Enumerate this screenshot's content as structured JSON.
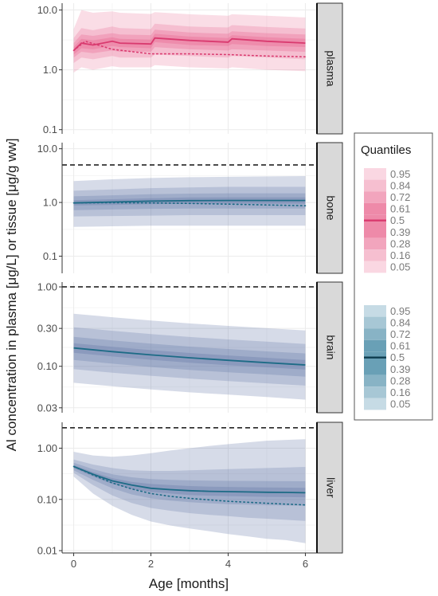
{
  "figure": {
    "ylabel": "Al concentration in plasma [μg/L] or tissue [μg/g ww]",
    "xlabel": "Age [months]",
    "legend_title": "Quantiles"
  },
  "colors": {
    "pink_base": "#e8658e",
    "pink_median": "#d93a6f",
    "blue_base": "#6b7fab",
    "blue_median": "#1d6b86",
    "grid": "#ebebeb",
    "strip": "#d9d9d9",
    "reference_line": "#111111"
  },
  "chart_data": {
    "type": "area",
    "x_ticks": [
      0,
      2,
      4,
      6
    ],
    "x_tick_labels": [
      "0",
      "2",
      "4",
      "6"
    ],
    "xlim": [
      -0.3,
      6.3
    ],
    "scale": "log10",
    "quantile_levels": [
      "0.95",
      "0.84",
      "0.72",
      "0.61",
      "0.5",
      "0.39",
      "0.28",
      "0.16",
      "0.05"
    ],
    "band_pairs": [
      [
        "0.05",
        "0.95"
      ],
      [
        "0.16",
        "0.84"
      ],
      [
        "0.28",
        "0.72"
      ],
      [
        "0.39",
        "0.61"
      ]
    ],
    "panels": [
      {
        "label": "plasma",
        "palette": "pink",
        "ylim": [
          0.085,
          13
        ],
        "y_ticks": [
          0.1,
          1.0,
          10.0
        ],
        "y_tick_labels": [
          "0.1",
          "1.0",
          "10.0"
        ],
        "reference_line": null,
        "x": [
          0,
          0.2,
          0.5,
          1.0,
          1.2,
          2.0,
          2.1,
          3.0,
          4.0,
          4.1,
          5.0,
          6.0
        ],
        "q05": [
          0.9,
          1.1,
          1.0,
          1.15,
          1.1,
          1.1,
          1.2,
          1.1,
          1.05,
          1.1,
          1.0,
          0.95
        ],
        "q16": [
          1.3,
          1.6,
          1.5,
          1.7,
          1.6,
          1.6,
          1.8,
          1.7,
          1.6,
          1.7,
          1.6,
          1.5
        ],
        "q28": [
          1.6,
          2.0,
          1.9,
          2.1,
          2.0,
          2.0,
          2.4,
          2.2,
          2.1,
          2.2,
          2.1,
          2.0
        ],
        "q39": [
          1.8,
          2.3,
          2.2,
          2.5,
          2.4,
          2.3,
          2.9,
          2.6,
          2.5,
          2.7,
          2.5,
          2.4
        ],
        "median": [
          2.1,
          2.8,
          2.6,
          3.0,
          2.8,
          2.7,
          3.4,
          3.1,
          2.9,
          3.3,
          3.0,
          2.8
        ],
        "q61": [
          2.4,
          3.3,
          3.1,
          3.5,
          3.3,
          3.2,
          4.0,
          3.6,
          3.4,
          3.8,
          3.5,
          3.3
        ],
        "q72": [
          2.8,
          3.9,
          3.7,
          4.1,
          3.9,
          3.8,
          4.7,
          4.2,
          4.0,
          4.4,
          4.1,
          3.9
        ],
        "q84": [
          3.4,
          5.0,
          4.6,
          5.3,
          5.0,
          4.8,
          5.9,
          5.3,
          5.1,
          5.6,
          5.2,
          4.9
        ],
        "q95": [
          4.8,
          10.0,
          9.0,
          9.5,
          9.0,
          8.6,
          9.2,
          8.5,
          8.0,
          8.5,
          8.0,
          7.5
        ],
        "mean_dotted_x": [
          0,
          0.3,
          1.0,
          2.0,
          3.0,
          4.0,
          5.0,
          6.0
        ],
        "mean_dotted": [
          2.1,
          3.0,
          2.2,
          1.85,
          1.85,
          1.8,
          1.7,
          1.65
        ]
      },
      {
        "label": "bone",
        "palette": "blue",
        "ylim": [
          0.048,
          13
        ],
        "y_ticks": [
          0.1,
          1.0,
          10.0
        ],
        "y_tick_labels": [
          "0.1",
          "1.0",
          "10.0"
        ],
        "reference_line": 5.0,
        "x": [
          0,
          1,
          2,
          3,
          4,
          5,
          6
        ],
        "q05": [
          0.35,
          0.36,
          0.37,
          0.37,
          0.37,
          0.37,
          0.37
        ],
        "q16": [
          0.55,
          0.56,
          0.57,
          0.58,
          0.58,
          0.58,
          0.58
        ],
        "q28": [
          0.72,
          0.74,
          0.76,
          0.77,
          0.77,
          0.77,
          0.77
        ],
        "q39": [
          0.88,
          0.9,
          0.93,
          0.95,
          0.95,
          0.95,
          0.95
        ],
        "median": [
          0.98,
          1.02,
          1.06,
          1.08,
          1.09,
          1.09,
          1.09
        ],
        "q61": [
          1.1,
          1.15,
          1.2,
          1.24,
          1.25,
          1.25,
          1.25
        ],
        "q72": [
          1.3,
          1.36,
          1.42,
          1.46,
          1.48,
          1.48,
          1.48
        ],
        "q84": [
          1.65,
          1.75,
          1.85,
          1.9,
          1.95,
          1.95,
          1.95
        ],
        "q95": [
          2.5,
          2.7,
          2.85,
          2.95,
          3.0,
          3.05,
          3.1
        ],
        "mean_dotted_x": [
          0,
          1,
          2,
          3,
          4,
          5,
          6
        ],
        "mean_dotted": [
          0.98,
          0.99,
          0.98,
          0.96,
          0.93,
          0.9,
          0.87
        ]
      },
      {
        "label": "brain",
        "palette": "blue",
        "ylim": [
          0.026,
          1.15
        ],
        "y_ticks": [
          0.03,
          0.1,
          0.3,
          1.0
        ],
        "y_tick_labels": [
          "0.03",
          "0.10",
          "0.30",
          "1.00"
        ],
        "reference_line": 1.0,
        "x": [
          0,
          1,
          2,
          3,
          4,
          5,
          6
        ],
        "q05": [
          0.062,
          0.056,
          0.051,
          0.047,
          0.044,
          0.041,
          0.038
        ],
        "q16": [
          0.092,
          0.083,
          0.076,
          0.07,
          0.065,
          0.061,
          0.057
        ],
        "q28": [
          0.12,
          0.108,
          0.098,
          0.09,
          0.084,
          0.079,
          0.074
        ],
        "q39": [
          0.148,
          0.133,
          0.121,
          0.111,
          0.103,
          0.097,
          0.091
        ],
        "median": [
          0.17,
          0.153,
          0.139,
          0.128,
          0.119,
          0.111,
          0.104
        ],
        "q61": [
          0.195,
          0.176,
          0.16,
          0.147,
          0.137,
          0.128,
          0.12
        ],
        "q72": [
          0.235,
          0.212,
          0.193,
          0.177,
          0.165,
          0.154,
          0.145
        ],
        "q84": [
          0.31,
          0.28,
          0.255,
          0.234,
          0.218,
          0.204,
          0.191
        ],
        "q95": [
          0.46,
          0.415,
          0.378,
          0.347,
          0.323,
          0.302,
          0.283
        ],
        "mean_dotted_x": [],
        "mean_dotted": []
      },
      {
        "label": "liver",
        "palette": "blue",
        "ylim": [
          0.009,
          3.2
        ],
        "y_ticks": [
          0.01,
          0.1,
          1.0
        ],
        "y_tick_labels": [
          "0.01",
          "0.10",
          "1.00"
        ],
        "reference_line": 2.5,
        "x": [
          0,
          0.5,
          1.0,
          1.5,
          2.0,
          2.5,
          3.0,
          3.5,
          4.0,
          4.5,
          5.0,
          5.5,
          6.0
        ],
        "q05": [
          0.28,
          0.13,
          0.075,
          0.05,
          0.037,
          0.031,
          0.027,
          0.024,
          0.021,
          0.019,
          0.017,
          0.016,
          0.014
        ],
        "q16": [
          0.33,
          0.19,
          0.12,
          0.085,
          0.068,
          0.06,
          0.054,
          0.05,
          0.047,
          0.044,
          0.042,
          0.04,
          0.038
        ],
        "q28": [
          0.37,
          0.24,
          0.165,
          0.125,
          0.105,
          0.095,
          0.088,
          0.084,
          0.081,
          0.079,
          0.077,
          0.076,
          0.075
        ],
        "q39": [
          0.41,
          0.28,
          0.2,
          0.16,
          0.14,
          0.13,
          0.122,
          0.118,
          0.116,
          0.114,
          0.112,
          0.111,
          0.11
        ],
        "median": [
          0.44,
          0.31,
          0.23,
          0.19,
          0.165,
          0.155,
          0.148,
          0.144,
          0.142,
          0.14,
          0.138,
          0.137,
          0.135
        ],
        "q61": [
          0.47,
          0.34,
          0.26,
          0.22,
          0.2,
          0.19,
          0.182,
          0.178,
          0.175,
          0.173,
          0.171,
          0.17,
          0.168
        ],
        "q72": [
          0.52,
          0.39,
          0.31,
          0.27,
          0.25,
          0.24,
          0.235,
          0.232,
          0.23,
          0.229,
          0.228,
          0.227,
          0.226
        ],
        "q84": [
          0.6,
          0.48,
          0.41,
          0.37,
          0.36,
          0.36,
          0.37,
          0.38,
          0.39,
          0.4,
          0.41,
          0.42,
          0.43
        ],
        "q95": [
          0.85,
          0.72,
          0.68,
          0.72,
          0.8,
          0.9,
          1.0,
          1.1,
          1.2,
          1.3,
          1.4,
          1.45,
          1.5
        ],
        "mean_dotted_x": [
          0,
          0.5,
          1.0,
          1.5,
          2.0,
          2.5,
          3.0,
          3.5,
          4.0,
          4.5,
          5.0,
          5.5,
          6.0
        ],
        "mean_dotted": [
          0.44,
          0.3,
          0.21,
          0.16,
          0.13,
          0.115,
          0.105,
          0.098,
          0.092,
          0.088,
          0.084,
          0.081,
          0.078
        ]
      }
    ]
  }
}
